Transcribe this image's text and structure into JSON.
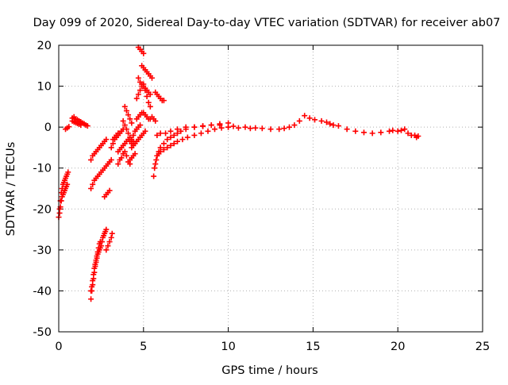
{
  "chart_data": {
    "type": "scatter",
    "title": "Day 099 of 2020, Sidereal Day-to-day VTEC variation (SDTVAR) for receiver ab07",
    "xlabel": "GPS time / hours",
    "ylabel": "SDTVAR / TECUs",
    "xlim": [
      0,
      25
    ],
    "ylim": [
      -50,
      20
    ],
    "x_ticks": [
      0,
      5,
      10,
      15,
      20,
      25
    ],
    "y_ticks": [
      -50,
      -40,
      -30,
      -20,
      -10,
      0,
      10,
      20
    ],
    "x_tick_labels": [
      "0",
      "5",
      "10",
      "15",
      "20",
      "25"
    ],
    "y_tick_labels": [
      "-50",
      "-40",
      "-30",
      "-20",
      "-10",
      "0",
      "10",
      "20"
    ],
    "grid": true,
    "marker": "+",
    "color": "#ff0000",
    "series": [
      {
        "points": [
          [
            0.0,
            -22
          ],
          [
            0.05,
            -20
          ],
          [
            0.1,
            -18
          ],
          [
            0.15,
            -16
          ],
          [
            0.2,
            -15
          ],
          [
            0.25,
            -14
          ],
          [
            0.3,
            -13.5
          ],
          [
            0.35,
            -13
          ],
          [
            0.4,
            -12.5
          ],
          [
            0.45,
            -12
          ],
          [
            0.5,
            -11.5
          ],
          [
            0.55,
            -11
          ],
          [
            0.05,
            -21
          ],
          [
            0.1,
            -19.5
          ],
          [
            0.15,
            -18
          ],
          [
            0.2,
            -17
          ],
          [
            0.25,
            -16.5
          ],
          [
            0.3,
            -16
          ],
          [
            0.35,
            -15.5
          ],
          [
            0.4,
            -15
          ],
          [
            0.45,
            -14.5
          ],
          [
            0.5,
            -14
          ],
          [
            0.4,
            -0.5
          ],
          [
            0.5,
            -0.2
          ],
          [
            0.6,
            0.1
          ],
          [
            0.8,
            2.2
          ],
          [
            0.9,
            2.5
          ],
          [
            1.0,
            2.0
          ],
          [
            1.1,
            1.8
          ],
          [
            1.2,
            1.5
          ],
          [
            1.3,
            1.3
          ],
          [
            1.4,
            1.0
          ],
          [
            1.5,
            0.8
          ],
          [
            1.6,
            0.5
          ],
          [
            1.7,
            0.3
          ],
          [
            0.8,
            1.5
          ],
          [
            0.9,
            1.3
          ],
          [
            1.0,
            1.1
          ],
          [
            1.1,
            0.9
          ],
          [
            1.2,
            0.7
          ],
          [
            1.3,
            0.5
          ],
          [
            1.9,
            -8
          ],
          [
            2.0,
            -7
          ],
          [
            2.1,
            -6.5
          ],
          [
            2.2,
            -6
          ],
          [
            2.3,
            -5.5
          ],
          [
            2.4,
            -5
          ],
          [
            2.5,
            -4.5
          ],
          [
            2.6,
            -4
          ],
          [
            2.7,
            -3.5
          ],
          [
            2.8,
            -3
          ],
          [
            1.9,
            -15
          ],
          [
            2.0,
            -14
          ],
          [
            2.1,
            -13
          ],
          [
            2.2,
            -12.5
          ],
          [
            2.3,
            -12
          ],
          [
            2.4,
            -11.5
          ],
          [
            2.5,
            -11
          ],
          [
            2.6,
            -10.5
          ],
          [
            2.7,
            -10
          ],
          [
            2.8,
            -9.5
          ],
          [
            2.9,
            -9
          ],
          [
            3.0,
            -8.5
          ],
          [
            3.1,
            -8
          ],
          [
            2.7,
            -17
          ],
          [
            2.8,
            -16.5
          ],
          [
            2.9,
            -16
          ],
          [
            3.0,
            -15.5
          ],
          [
            1.9,
            -42
          ],
          [
            1.95,
            -40
          ],
          [
            2.0,
            -38.5
          ],
          [
            2.05,
            -37
          ],
          [
            2.1,
            -35.5
          ],
          [
            2.15,
            -34
          ],
          [
            2.2,
            -33
          ],
          [
            2.25,
            -32
          ],
          [
            2.3,
            -31
          ],
          [
            2.35,
            -30.5
          ],
          [
            2.4,
            -30
          ],
          [
            2.45,
            -29.5
          ],
          [
            2.5,
            -29
          ],
          [
            2.55,
            -28
          ],
          [
            2.6,
            -27
          ],
          [
            2.65,
            -26.5
          ],
          [
            2.7,
            -26
          ],
          [
            2.75,
            -25.5
          ],
          [
            2.8,
            -25
          ],
          [
            1.9,
            -40
          ],
          [
            1.95,
            -39
          ],
          [
            2.0,
            -37.5
          ],
          [
            2.05,
            -36
          ],
          [
            2.1,
            -34.5
          ],
          [
            2.15,
            -33.5
          ],
          [
            2.2,
            -32.5
          ],
          [
            2.25,
            -31.5
          ],
          [
            2.3,
            -30.5
          ],
          [
            2.35,
            -29.5
          ],
          [
            2.4,
            -28.5
          ],
          [
            2.45,
            -28
          ],
          [
            2.8,
            -30
          ],
          [
            2.9,
            -29
          ],
          [
            3.0,
            -28
          ],
          [
            3.1,
            -27
          ],
          [
            3.15,
            -26
          ],
          [
            3.1,
            -5
          ],
          [
            3.2,
            -4
          ],
          [
            3.3,
            -3
          ],
          [
            3.4,
            -2.5
          ],
          [
            3.5,
            -2
          ],
          [
            3.6,
            -1.5
          ],
          [
            3.7,
            -1
          ],
          [
            3.8,
            -0.5
          ],
          [
            3.2,
            -3
          ],
          [
            3.3,
            -2.5
          ],
          [
            3.4,
            -2
          ],
          [
            3.5,
            -1.5
          ],
          [
            3.5,
            -9
          ],
          [
            3.6,
            -8
          ],
          [
            3.7,
            -7.5
          ],
          [
            3.8,
            -6.5
          ],
          [
            3.9,
            -6
          ],
          [
            4.0,
            -7
          ],
          [
            4.1,
            -8.5
          ],
          [
            4.2,
            -9
          ],
          [
            3.5,
            -6
          ],
          [
            3.6,
            -5.5
          ],
          [
            3.7,
            -5
          ],
          [
            3.8,
            -4.5
          ],
          [
            3.9,
            -4
          ],
          [
            4.0,
            -3.5
          ],
          [
            4.1,
            -3
          ],
          [
            4.2,
            -3.5
          ],
          [
            4.3,
            -4
          ],
          [
            4.4,
            -3.5
          ],
          [
            3.8,
            1.5
          ],
          [
            3.9,
            0.5
          ],
          [
            4.0,
            -0.5
          ],
          [
            4.1,
            -1.5
          ],
          [
            4.2,
            -2.5
          ],
          [
            4.3,
            -3
          ],
          [
            3.9,
            5
          ],
          [
            4.0,
            4
          ],
          [
            4.1,
            3
          ],
          [
            4.2,
            2
          ],
          [
            4.3,
            1
          ],
          [
            4.4,
            -2
          ],
          [
            4.5,
            -1
          ],
          [
            4.6,
            -0.5
          ],
          [
            4.7,
            0
          ],
          [
            4.8,
            0.5
          ],
          [
            4.3,
            -5
          ],
          [
            4.4,
            -4.5
          ],
          [
            4.5,
            -4
          ],
          [
            4.6,
            -3.5
          ],
          [
            4.7,
            -3
          ],
          [
            4.8,
            -2.5
          ],
          [
            4.9,
            -2
          ],
          [
            5.0,
            -1.5
          ],
          [
            5.1,
            -1
          ],
          [
            4.2,
            -8
          ],
          [
            4.3,
            -7.5
          ],
          [
            4.4,
            -7
          ],
          [
            4.5,
            -6.5
          ],
          [
            4.6,
            2
          ],
          [
            4.7,
            2.5
          ],
          [
            4.8,
            3
          ],
          [
            4.9,
            3.5
          ],
          [
            5.0,
            3.5
          ],
          [
            5.1,
            3
          ],
          [
            5.2,
            2.5
          ],
          [
            5.3,
            2
          ],
          [
            5.4,
            2
          ],
          [
            5.5,
            2.5
          ],
          [
            5.6,
            2
          ],
          [
            5.7,
            1.5
          ],
          [
            4.6,
            7
          ],
          [
            4.7,
            8
          ],
          [
            4.8,
            9
          ],
          [
            4.9,
            10
          ],
          [
            5.0,
            10.5
          ],
          [
            5.1,
            9
          ],
          [
            5.2,
            7.5
          ],
          [
            5.3,
            6
          ],
          [
            5.4,
            5
          ],
          [
            4.7,
            12
          ],
          [
            4.8,
            11
          ],
          [
            4.9,
            10.5
          ],
          [
            5.0,
            10
          ],
          [
            5.1,
            9.5
          ],
          [
            5.2,
            9
          ],
          [
            5.3,
            8.5
          ],
          [
            5.4,
            8
          ],
          [
            4.7,
            19.5
          ],
          [
            4.8,
            19
          ],
          [
            4.9,
            18.5
          ],
          [
            5.0,
            18
          ],
          [
            4.9,
            15
          ],
          [
            5.0,
            14.5
          ],
          [
            5.1,
            14
          ],
          [
            5.2,
            13.5
          ],
          [
            5.3,
            13
          ],
          [
            5.4,
            12.5
          ],
          [
            5.5,
            12
          ],
          [
            5.7,
            8.5
          ],
          [
            5.8,
            8
          ],
          [
            5.9,
            7.5
          ],
          [
            6.0,
            7
          ],
          [
            6.1,
            6.5
          ],
          [
            6.2,
            6.5
          ],
          [
            5.6,
            -12
          ],
          [
            5.65,
            -10
          ],
          [
            5.7,
            -9
          ],
          [
            5.75,
            -8
          ],
          [
            5.8,
            -7
          ],
          [
            5.9,
            -6
          ],
          [
            6.0,
            -5
          ],
          [
            6.2,
            -4
          ],
          [
            6.4,
            -3
          ],
          [
            6.6,
            -2.5
          ],
          [
            6.8,
            -2
          ],
          [
            7.0,
            -1.5
          ],
          [
            7.2,
            -1
          ],
          [
            7.5,
            -0.5
          ],
          [
            8.0,
            0
          ],
          [
            8.5,
            0.3
          ],
          [
            9.0,
            0.5
          ],
          [
            9.5,
            0.8
          ],
          [
            10.0,
            1.0
          ],
          [
            5.8,
            -7
          ],
          [
            5.9,
            -6.5
          ],
          [
            6.0,
            -6
          ],
          [
            6.2,
            -5.5
          ],
          [
            6.4,
            -5
          ],
          [
            6.6,
            -4.5
          ],
          [
            6.8,
            -4
          ],
          [
            7.0,
            -3.5
          ],
          [
            7.3,
            -3
          ],
          [
            7.6,
            -2.5
          ],
          [
            8.0,
            -2
          ],
          [
            8.4,
            -1.5
          ],
          [
            8.8,
            -1
          ],
          [
            9.2,
            -0.5
          ],
          [
            9.6,
            -0.2
          ],
          [
            10.0,
            0
          ],
          [
            5.8,
            -2
          ],
          [
            6.0,
            -1.5
          ],
          [
            6.3,
            -1.5
          ],
          [
            6.6,
            -1
          ],
          [
            7.0,
            -0.5
          ],
          [
            7.5,
            0
          ],
          [
            8.0,
            0
          ],
          [
            8.5,
            0.2
          ],
          [
            9.0,
            0.5
          ],
          [
            9.5,
            0.5
          ],
          [
            10.0,
            0
          ],
          [
            10.3,
            0.2
          ],
          [
            10.6,
            -0.2
          ],
          [
            11.0,
            0
          ],
          [
            11.3,
            -0.3
          ],
          [
            11.6,
            -0.2
          ],
          [
            12.0,
            -0.3
          ],
          [
            12.5,
            -0.5
          ],
          [
            13.0,
            -0.5
          ],
          [
            13.3,
            -0.3
          ],
          [
            13.6,
            0
          ],
          [
            13.9,
            0.5
          ],
          [
            14.2,
            1.5
          ],
          [
            14.5,
            2.8
          ],
          [
            14.8,
            2.2
          ],
          [
            15.1,
            1.8
          ],
          [
            15.5,
            1.5
          ],
          [
            15.8,
            1.2
          ],
          [
            16.0,
            0.8
          ],
          [
            16.2,
            0.5
          ],
          [
            16.5,
            0.3
          ],
          [
            17.0,
            -0.5
          ],
          [
            17.5,
            -1
          ],
          [
            18.0,
            -1.3
          ],
          [
            18.5,
            -1.5
          ],
          [
            19.0,
            -1.3
          ],
          [
            19.5,
            -1.0
          ],
          [
            19.7,
            -0.8
          ],
          [
            20.0,
            -1
          ],
          [
            20.2,
            -0.8
          ],
          [
            20.4,
            -0.5
          ],
          [
            20.6,
            -1.5
          ],
          [
            20.8,
            -2
          ],
          [
            21.0,
            -2
          ],
          [
            21.1,
            -2.5
          ],
          [
            21.2,
            -2.2
          ]
        ]
      }
    ]
  }
}
